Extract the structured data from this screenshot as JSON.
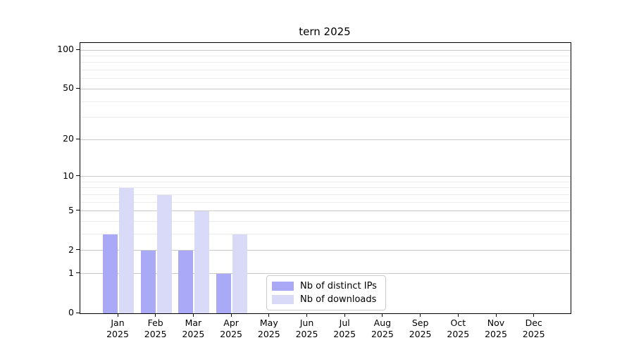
{
  "chart_data": {
    "type": "bar",
    "title": "tern 2025",
    "year": "2025",
    "categories": [
      "Jan",
      "Feb",
      "Mar",
      "Apr",
      "May",
      "Jun",
      "Jul",
      "Aug",
      "Sep",
      "Oct",
      "Nov",
      "Dec"
    ],
    "series": [
      {
        "name": "Nb of distinct IPs",
        "color": "#a9a9f7",
        "values": [
          3,
          2,
          2,
          1,
          0,
          0,
          0,
          0,
          0,
          0,
          0,
          0
        ]
      },
      {
        "name": "Nb of downloads",
        "color": "#d9d9f8",
        "values": [
          8,
          7,
          5,
          3,
          0,
          0,
          0,
          0,
          0,
          0,
          0,
          0
        ]
      }
    ],
    "yscale": "log1p",
    "yticks": [
      0,
      1,
      2,
      5,
      10,
      20,
      50,
      100
    ],
    "minor_yticks": [
      3,
      4,
      6,
      7,
      8,
      9,
      30,
      40,
      60,
      70,
      80,
      90
    ],
    "ylim": [
      0,
      113
    ],
    "grid": "horizontal",
    "legend_position": "inside-bottom-center",
    "colors": {
      "major_grid": "#c9c9c9",
      "minor_grid": "#ececec",
      "axis": "#000000",
      "legend_border": "#cccccc"
    }
  }
}
